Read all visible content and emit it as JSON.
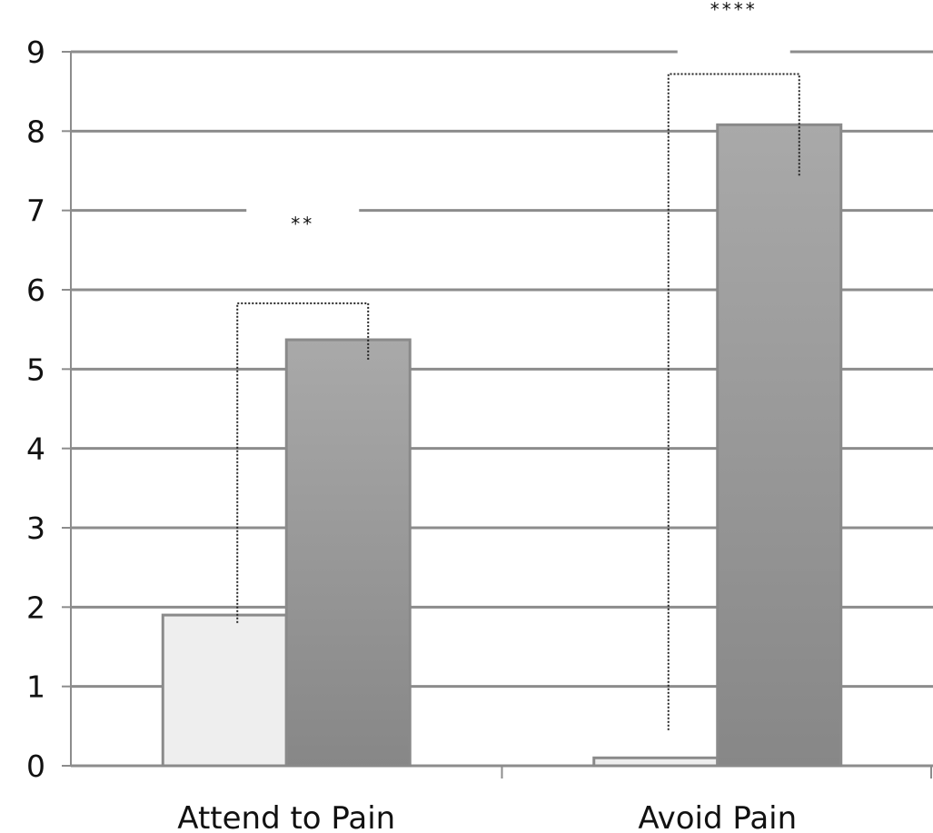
{
  "chart_data": {
    "type": "bar",
    "categories": [
      "Attend to Pain",
      "Avoid Pain"
    ],
    "series": [
      {
        "values": [
          1.9,
          0.1
        ],
        "color": "#eeeeee"
      },
      {
        "values": [
          5.37,
          8.08
        ],
        "color": "#999999"
      }
    ],
    "ylim": [
      0,
      9
    ],
    "yticks": [
      0,
      1,
      2,
      3,
      4,
      5,
      6,
      7,
      8,
      9
    ],
    "grid": true,
    "annotations": [
      {
        "category": "Attend to Pain",
        "label": "**",
        "bracket_top": 5.83,
        "left_bottom": 1.8,
        "right_bottom": 5.1
      },
      {
        "category": "Avoid Pain",
        "label": "****",
        "bracket_top": 8.72,
        "left_bottom": 0.45,
        "right_bottom": 7.42
      }
    ]
  }
}
